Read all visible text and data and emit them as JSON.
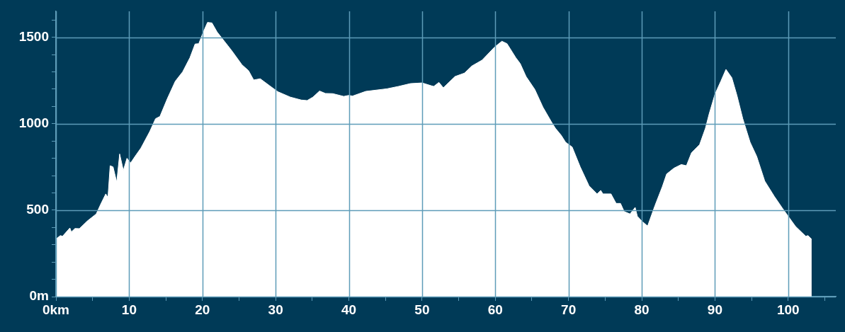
{
  "chart_data": {
    "type": "area",
    "x": [
      0,
      0.6,
      0.9,
      1.9,
      2.1,
      2.6,
      3.2,
      4.3,
      5.5,
      6.1,
      6.8,
      7.1,
      7.4,
      7.8,
      8.3,
      8.7,
      9.2,
      9.7,
      10.2,
      10.8,
      11.6,
      12.8,
      13.6,
      14.2,
      15.2,
      16.3,
      17.3,
      18.3,
      19.0,
      19.5,
      20.2,
      20.7,
      21.3,
      22.0,
      23.0,
      24.0,
      25.4,
      26.3,
      27.0,
      27.9,
      29.2,
      30.3,
      32.0,
      33.5,
      34.3,
      35.1,
      36.0,
      36.8,
      37.8,
      39.3,
      40.0,
      40.5,
      42.3,
      45.2,
      46.8,
      48.4,
      50.0,
      51.3,
      51.6,
      52.3,
      52.9,
      54.5,
      55.8,
      56.8,
      58.2,
      59.9,
      60.9,
      61.6,
      62.8,
      63.4,
      64.2,
      65.4,
      66.5,
      67.7,
      68.2,
      69.0,
      69.6,
      70.5,
      71.6,
      72.8,
      73.9,
      74.4,
      74.7,
      75.8,
      76.5,
      77.1,
      77.6,
      78.4,
      79.1,
      79.4,
      80.0,
      80.8,
      81.8,
      82.8,
      83.4,
      84.4,
      85.4,
      86.1,
      86.8,
      87.9,
      88.7,
      89.2,
      90.0,
      90.8,
      91.5,
      92.3,
      93.0,
      93.8,
      94.8,
      95.7,
      96.8,
      98.1,
      99.2,
      100.0,
      101.0,
      102.4,
      102.7,
      103.2
    ],
    "series": [
      {
        "color": "#ffffff",
        "values": [
          333,
          353,
          349,
          397,
          374,
          394,
          393,
          438,
          478,
          533,
          594,
          573,
          757,
          750,
          662,
          825,
          730,
          800,
          773,
          811,
          859,
          954,
          1029,
          1042,
          1144,
          1246,
          1300,
          1382,
          1461,
          1463,
          1538,
          1586,
          1583,
          1531,
          1477,
          1423,
          1341,
          1307,
          1253,
          1260,
          1219,
          1185,
          1154,
          1137,
          1134,
          1154,
          1189,
          1175,
          1174,
          1158,
          1164,
          1160,
          1187,
          1202,
          1216,
          1232,
          1236,
          1219,
          1216,
          1239,
          1208,
          1273,
          1293,
          1334,
          1368,
          1443,
          1477,
          1463,
          1382,
          1348,
          1273,
          1198,
          1096,
          1008,
          974,
          933,
          893,
          865,
          750,
          641,
          594,
          614,
          594,
          594,
          539,
          539,
          492,
          478,
          516,
          465,
          437,
          408,
          526,
          635,
          709,
          743,
          764,
          757,
          832,
          879,
          974,
          1056,
          1171,
          1246,
          1314,
          1266,
          1164,
          1029,
          893,
          811,
          668,
          580,
          512,
          465,
          406,
          349,
          353,
          332
        ]
      }
    ],
    "xlim": [
      0,
      106.5
    ],
    "xticks": [
      {
        "value": 0,
        "label": "0km"
      },
      {
        "value": 5,
        "label": null
      },
      10,
      {
        "value": 15,
        "label": null
      },
      20,
      {
        "value": 25,
        "label": null
      },
      30,
      {
        "value": 35,
        "label": null
      },
      40,
      {
        "value": 45,
        "label": null
      },
      50,
      {
        "value": 55,
        "label": null
      },
      60,
      {
        "value": 65,
        "label": null
      },
      70,
      {
        "value": 75,
        "label": null
      },
      80,
      {
        "value": 85,
        "label": null
      },
      90,
      {
        "value": 95,
        "label": null
      },
      100,
      {
        "value": 105,
        "label": null
      }
    ],
    "ylim": [
      0,
      1650
    ],
    "yticks": [
      {
        "value": 0,
        "label": "0m"
      },
      {
        "value": 100,
        "label": null
      },
      {
        "value": 200,
        "label": null
      },
      {
        "value": 300,
        "label": null
      },
      {
        "value": 400,
        "label": null
      },
      500,
      {
        "value": 600,
        "label": null
      },
      {
        "value": 700,
        "label": null
      },
      {
        "value": 800,
        "label": null
      },
      {
        "value": 900,
        "label": null
      },
      1000,
      {
        "value": 1100,
        "label": null
      },
      {
        "value": 1200,
        "label": null
      },
      {
        "value": 1300,
        "label": null
      },
      {
        "value": 1400,
        "label": null
      },
      1500,
      {
        "value": 1600,
        "label": null
      }
    ],
    "grid": true,
    "marker": "none",
    "legend": false
  }
}
